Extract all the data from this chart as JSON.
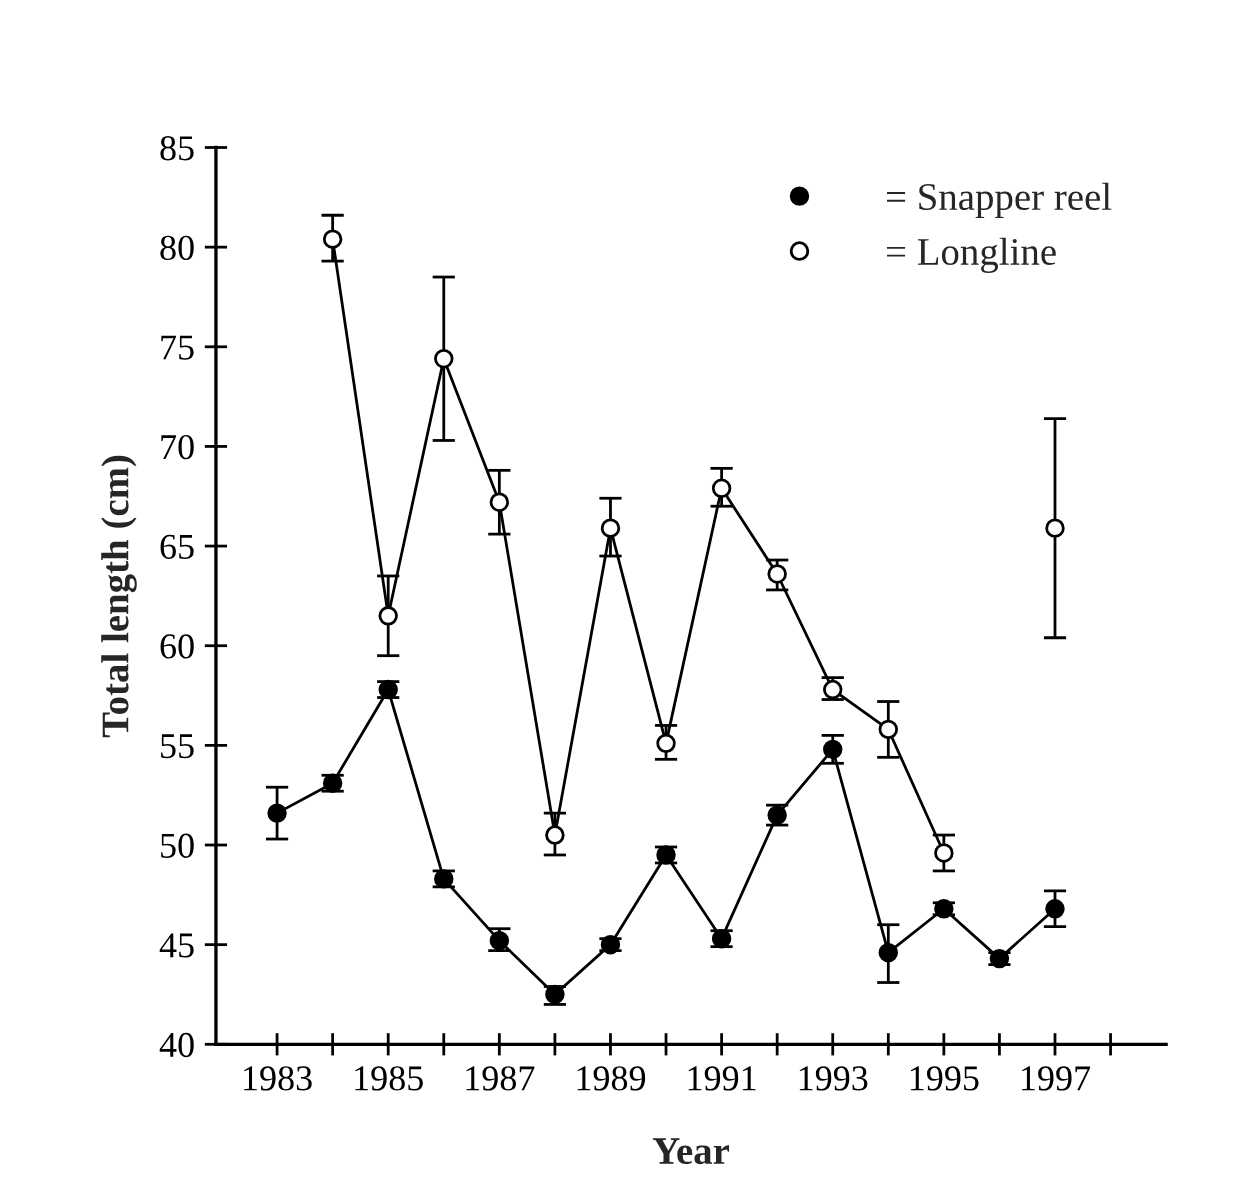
{
  "chart_data": {
    "type": "line",
    "xlabel": "Year",
    "ylabel": "Total length (cm)",
    "xlim": [
      1981.9,
      1999
    ],
    "xticks": [
      1983,
      {
        "value": 1984,
        "label": null
      },
      1985,
      {
        "value": 1986,
        "label": null
      },
      1987,
      {
        "value": 1988,
        "label": null
      },
      1989,
      {
        "value": 1990,
        "label": null
      },
      1991,
      {
        "value": 1992,
        "label": null
      },
      1993,
      {
        "value": 1994,
        "label": null
      },
      1995,
      {
        "value": 1996,
        "label": null
      },
      1997,
      {
        "value": 1998,
        "label": null
      }
    ],
    "ylim": [
      40,
      85
    ],
    "yticks": [
      40,
      45,
      50,
      55,
      60,
      65,
      70,
      75,
      80,
      85
    ],
    "grid": false,
    "legend": "top right",
    "marker": "circle",
    "line_style": "solid",
    "series": [
      {
        "name": "= Snapper reel",
        "color": "#000000",
        "x": [
          1983,
          1984,
          1985,
          1986,
          1987,
          1988,
          1989,
          1990,
          1991,
          1992,
          1993,
          1994,
          1995,
          1996,
          1997
        ],
        "values": [
          51.6,
          53.1,
          57.8,
          48.3,
          45.2,
          42.5,
          45.0,
          49.5,
          45.3,
          51.5,
          54.8,
          44.6,
          46.8,
          44.3,
          46.8
        ],
        "errors": [
          [
            50.3,
            52.9
          ],
          [
            52.7,
            53.5
          ],
          [
            57.4,
            58.2
          ],
          [
            47.9,
            48.7
          ],
          [
            44.7,
            45.8
          ],
          [
            42.0,
            42.9
          ],
          [
            44.7,
            45.3
          ],
          [
            49.1,
            49.9
          ],
          [
            44.9,
            45.7
          ],
          [
            51.0,
            52.0
          ],
          [
            54.1,
            55.5
          ],
          [
            43.1,
            46.0
          ],
          [
            46.5,
            47.1
          ],
          [
            44.0,
            44.6
          ],
          [
            45.9,
            47.7
          ]
        ]
      },
      {
        "name": "= Longline",
        "color": "#000000",
        "x": [
          1984,
          1985,
          1986,
          1987,
          1988,
          1989,
          1990,
          1991,
          1992,
          1993,
          1994,
          1995,
          1996,
          1997
        ],
        "values": [
          80.4,
          61.5,
          74.4,
          67.2,
          50.5,
          65.9,
          55.1,
          67.9,
          63.6,
          57.8,
          55.8,
          49.6,
          null,
          65.9
        ],
        "errors": [
          [
            79.3,
            81.6
          ],
          [
            59.5,
            63.5
          ],
          [
            70.3,
            78.5
          ],
          [
            65.6,
            68.8
          ],
          [
            49.5,
            51.6
          ],
          [
            64.5,
            67.4
          ],
          [
            54.3,
            56.0
          ],
          [
            67.0,
            68.9
          ],
          [
            62.8,
            64.3
          ],
          [
            57.3,
            58.4
          ],
          [
            54.4,
            57.2
          ],
          [
            48.7,
            50.5
          ],
          null,
          [
            60.4,
            71.4
          ]
        ]
      }
    ]
  }
}
